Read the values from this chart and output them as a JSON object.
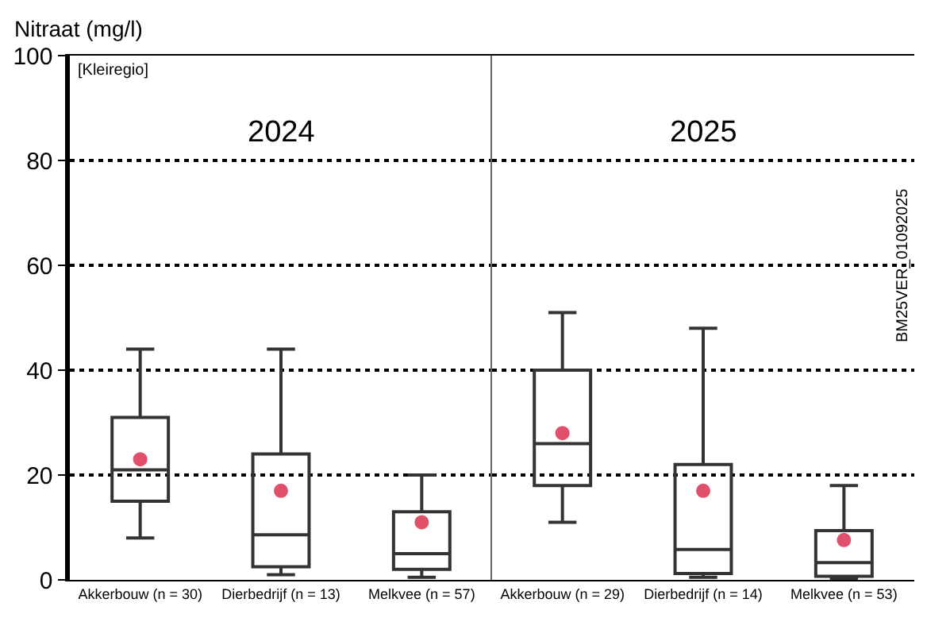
{
  "chart_data": [
    {
      "type": "box",
      "title": "2024",
      "ylabel": "Nitraat (mg/l)",
      "annotations": [
        "[Kleiregio]"
      ],
      "categories": [
        "Akkerbouw (n = 30)",
        "Dierbedrijf (n = 13)",
        "Melkvee (n = 57)"
      ],
      "ylim": [
        0,
        100
      ],
      "yticks": [
        0,
        20,
        40,
        60,
        80,
        100
      ],
      "grid": "y",
      "marker": "circle",
      "series": [
        {
          "color": "#333333",
          "boxes": [
            {
              "low": 8,
              "q1": 15,
              "median": 21,
              "q3": 31,
              "high": 44
            },
            {
              "low": 1,
              "q1": 2.5,
              "median": 8.6,
              "q3": 24,
              "high": 44
            },
            {
              "low": 0.5,
              "q1": 2,
              "median": 5,
              "q3": 13,
              "high": 20
            }
          ]
        },
        {
          "type": "scatter",
          "color": "#e0506a",
          "x": [
            "Akkerbouw (n = 30)",
            "Dierbedrijf (n = 13)",
            "Melkvee (n = 57)"
          ],
          "values": [
            23,
            17,
            11
          ]
        }
      ]
    },
    {
      "type": "box",
      "title": "2025",
      "annotations": [
        "BM25VER_01092025"
      ],
      "categories": [
        "Akkerbouw (n = 29)",
        "Dierbedrijf (n = 14)",
        "Melkvee (n = 53)"
      ],
      "ylim": [
        0,
        100
      ],
      "tick_labels": "x",
      "grid": "y",
      "marker": "circle",
      "series": [
        {
          "color": "#333333",
          "boxes": [
            {
              "low": 11,
              "q1": 18,
              "median": 26,
              "q3": 40,
              "high": 51
            },
            {
              "low": 0.5,
              "q1": 1.2,
              "median": 5.8,
              "q3": 22,
              "high": 48
            },
            {
              "low": 0.3,
              "q1": 0.7,
              "median": 3.3,
              "q3": 9.4,
              "high": 18
            }
          ]
        },
        {
          "type": "scatter",
          "color": "#e0506a",
          "x": [
            "Akkerbouw (n = 29)",
            "Dierbedrijf (n = 14)",
            "Melkvee (n = 53)"
          ],
          "values": [
            28,
            17,
            7.6
          ]
        }
      ]
    }
  ]
}
